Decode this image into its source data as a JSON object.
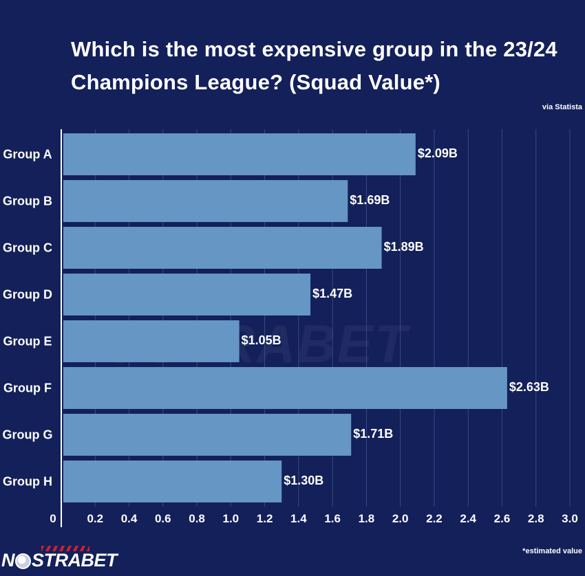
{
  "title": "Which is the most expensive group in the 23/24 Champions League? (Squad Value*)",
  "source": "via Statista",
  "footnote": "*estimated value",
  "logo": {
    "text_pre": "N",
    "text_post": "STRABET",
    "icon": "soccer-ball-icon"
  },
  "watermark": "NOSTRABET",
  "colors": {
    "background": "#13205a",
    "bar": "#6596c4",
    "grid": "#3a4a84",
    "text": "#ffffff",
    "brand_red": "#d11e2e"
  },
  "chart_data": {
    "type": "bar",
    "orientation": "horizontal",
    "categories": [
      "Group A",
      "Group B",
      "Group C",
      "Group D",
      "Group E",
      "Group F",
      "Group G",
      "Group H"
    ],
    "values": [
      2.09,
      1.69,
      1.89,
      1.47,
      1.05,
      2.63,
      1.71,
      1.3
    ],
    "value_labels": [
      "$2.09B",
      "$1.69B",
      "$1.89B",
      "$1.47B",
      "$1.05B",
      "$2.63B",
      "$1.71B",
      "$1.30B"
    ],
    "xlim": [
      0,
      3.0
    ],
    "xticks": [
      "0",
      "0.2",
      "0.4",
      "0.6",
      "0.8",
      "1.0",
      "1.2",
      "1.4",
      "1.6",
      "1.8",
      "2.0",
      "2.2",
      "2.4",
      "2.6",
      "2.8",
      "3.0"
    ],
    "grid": true,
    "xlabel": "",
    "ylabel": ""
  }
}
